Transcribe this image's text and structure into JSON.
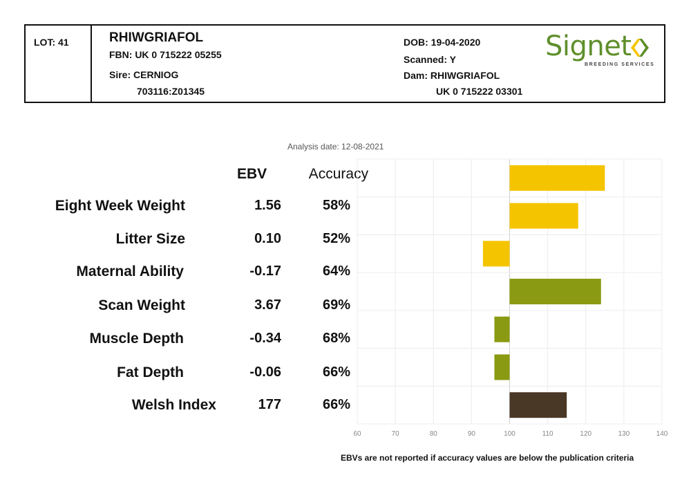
{
  "header": {
    "lot": "LOT: 41",
    "name": "RHIWGRIAFOL",
    "fbn": "FBN: UK 0 715222 05255",
    "sire": "Sire: CERNIOG",
    "sire_id": "703116:Z01345",
    "dob": "DOB: 19-04-2020",
    "scanned": "Scanned: Y",
    "dam": "Dam: RHIWGRIAFOL",
    "dam_id": "UK 0 715222 03301"
  },
  "logo": {
    "word": "Signet",
    "subtitle": "BREEDING SERVICES",
    "color": "#5f8f2c"
  },
  "analysis_date": "Analysis date: 12-08-2021",
  "columns": {
    "ebv": "EBV",
    "accuracy": "Accuracy"
  },
  "rows": [
    {
      "label": "Eight Week Weight",
      "ebv": "1.56",
      "accuracy": "58%"
    },
    {
      "label": "Litter Size",
      "ebv": "0.10",
      "accuracy": "52%"
    },
    {
      "label": "Maternal Ability",
      "ebv": "-0.17",
      "accuracy": "64%"
    },
    {
      "label": "Scan Weight",
      "ebv": "3.67",
      "accuracy": "69%"
    },
    {
      "label": "Muscle Depth",
      "ebv": "-0.34",
      "accuracy": "68%"
    },
    {
      "label": "Fat Depth",
      "ebv": "-0.06",
      "accuracy": "66%"
    },
    {
      "label": "Welsh Index",
      "ebv": "177",
      "accuracy": "66%"
    }
  ],
  "footnote": "EBVs are not reported if accuracy values are below the publication criteria",
  "chart_data": {
    "type": "bar",
    "orientation": "horizontal",
    "baseline": 100,
    "categories": [
      "Eight Week Weight",
      "Litter Size",
      "Maternal Ability",
      "Scan Weight",
      "Muscle Depth",
      "Fat Depth",
      "Welsh Index"
    ],
    "values": [
      125,
      118,
      93,
      124,
      96,
      96,
      115
    ],
    "colors": [
      "#f5c400",
      "#f5c400",
      "#f5c400",
      "#8a9a12",
      "#8a9a12",
      "#8a9a12",
      "#4a3826"
    ],
    "xlim": [
      60,
      140
    ],
    "xticks": [
      60,
      70,
      80,
      90,
      100,
      110,
      120,
      130,
      140
    ],
    "grid": true
  }
}
